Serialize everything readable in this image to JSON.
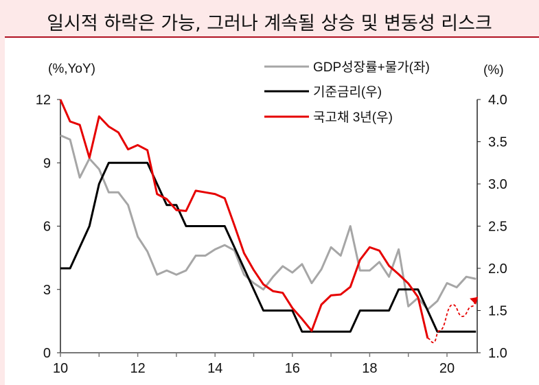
{
  "title": "일시적 하락은 가능, 그러나 계속될 상승 및 변동성 리스크",
  "chart_data": {
    "type": "line",
    "title": "일시적 하락은 가능, 그러나 계속될 상승 및 변동성 리스크",
    "x_axis": {
      "range": [
        2010,
        2020.8
      ],
      "ticks": [
        10,
        12,
        14,
        16,
        18,
        20
      ]
    },
    "left_axis": {
      "label": "(%,YoY)",
      "range": [
        0,
        12
      ],
      "ticks": [
        0,
        3,
        6,
        9,
        12
      ]
    },
    "right_axis": {
      "label": "(%)",
      "range": [
        1.0,
        4.0
      ],
      "ticks": [
        "1.0",
        "1.5",
        "2.0",
        "2.5",
        "3.0",
        "3.5",
        "4.0"
      ]
    },
    "x_start": 2010,
    "x_step": 0.25,
    "grid": false,
    "legend_position": "top-right",
    "series": [
      {
        "name": "GDP성장률+물가(좌)",
        "axis": "left",
        "color": "#a6a6a6",
        "values": [
          10.3,
          10.1,
          8.3,
          9.2,
          8.7,
          7.6,
          7.6,
          7.0,
          5.5,
          4.8,
          3.7,
          3.9,
          3.7,
          3.9,
          4.6,
          4.6,
          4.9,
          5.1,
          4.85,
          3.7,
          3.3,
          3.0,
          3.6,
          4.1,
          3.8,
          4.2,
          3.3,
          3.95,
          5.0,
          4.6,
          6.0,
          3.9,
          3.9,
          4.3,
          3.6,
          4.9,
          2.2,
          2.6,
          2.05,
          2.45,
          3.3,
          3.1,
          3.6,
          3.5
        ]
      },
      {
        "name": "기준금리(우)",
        "axis": "right",
        "color": "#000000",
        "values": [
          2.0,
          2.0,
          2.25,
          2.5,
          3.0,
          3.25,
          3.25,
          3.25,
          3.25,
          3.25,
          3.0,
          2.75,
          2.75,
          2.5,
          2.5,
          2.5,
          2.5,
          2.5,
          2.25,
          2.0,
          1.75,
          1.5,
          1.5,
          1.5,
          1.5,
          1.25,
          1.25,
          1.25,
          1.25,
          1.25,
          1.25,
          1.5,
          1.5,
          1.5,
          1.5,
          1.75,
          1.75,
          1.75,
          1.5,
          1.25,
          1.25,
          1.25,
          1.25,
          1.25
        ]
      },
      {
        "name": "국고채 3년(우)",
        "axis": "right",
        "color": "#e60000",
        "values": [
          4.0,
          3.74,
          3.7,
          3.31,
          3.8,
          3.68,
          3.61,
          3.41,
          3.46,
          3.4,
          2.88,
          2.82,
          2.69,
          2.68,
          2.92,
          2.9,
          2.88,
          2.83,
          2.51,
          2.18,
          1.98,
          1.81,
          1.73,
          1.71,
          1.53,
          1.4,
          1.26,
          1.57,
          1.68,
          1.69,
          1.78,
          2.1,
          2.25,
          2.21,
          2.03,
          1.93,
          1.82,
          1.66,
          1.17
        ],
        "projection": [
          [
            2019.5,
            1.17
          ],
          [
            2019.65,
            1.12
          ],
          [
            2019.8,
            1.26
          ],
          [
            2020.15,
            1.57
          ],
          [
            2020.4,
            1.43
          ],
          [
            2020.65,
            1.55
          ],
          [
            2020.8,
            1.66
          ]
        ]
      }
    ]
  }
}
